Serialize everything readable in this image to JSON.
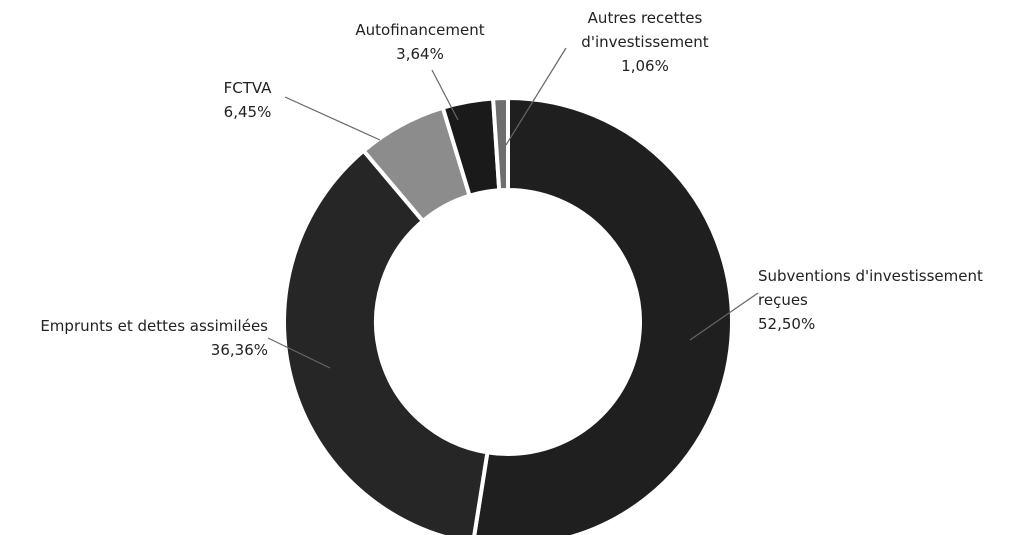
{
  "chart_data": {
    "type": "donut",
    "categories": [
      "Subventions d'investissement reçues",
      "Emprunts et dettes assimilées",
      "FCTVA",
      "Autofinancement",
      "Autres recettes d'investissement"
    ],
    "values": [
      52.5,
      36.36,
      6.45,
      3.64,
      1.06
    ],
    "value_labels": [
      "52,50%",
      "36,36%",
      "6,45%",
      "3,64%",
      "1,06%"
    ],
    "colors": [
      "#1f1f1f",
      "#262626",
      "#8c8c8c",
      "#1a1a1a",
      "#6e6e6e"
    ]
  }
}
